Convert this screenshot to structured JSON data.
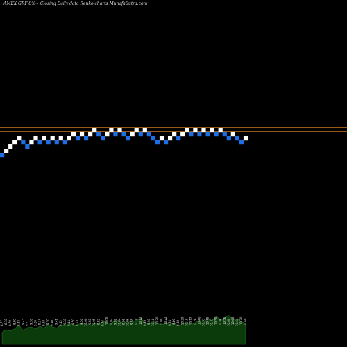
{
  "header": {
    "title": "AMEX  GRF 8%~  Closing Daily data  Renko  charts MunafaSutra.com"
  },
  "colors": {
    "background": "#000000",
    "up_brick": "#ffffff",
    "down_brick": "#1e6ee6",
    "reference_line": "#c8781e",
    "volume_fill": "#0b3a0b",
    "volume_line": "#1f7a1f",
    "label_text": "#e8e8e8"
  },
  "chart_data": {
    "type": "renko",
    "brick_size": 1,
    "reference_lines": [
      16,
      15
    ],
    "bricks": [
      {
        "dir": "down",
        "level": 10
      },
      {
        "dir": "up",
        "level": 11
      },
      {
        "dir": "up",
        "level": 12
      },
      {
        "dir": "up",
        "level": 13
      },
      {
        "dir": "up",
        "level": 14
      },
      {
        "dir": "down",
        "level": 13
      },
      {
        "dir": "down",
        "level": 12
      },
      {
        "dir": "up",
        "level": 13
      },
      {
        "dir": "up",
        "level": 14
      },
      {
        "dir": "down",
        "level": 13
      },
      {
        "dir": "up",
        "level": 14
      },
      {
        "dir": "down",
        "level": 13
      },
      {
        "dir": "up",
        "level": 14
      },
      {
        "dir": "down",
        "level": 13
      },
      {
        "dir": "up",
        "level": 14
      },
      {
        "dir": "down",
        "level": 13
      },
      {
        "dir": "up",
        "level": 14
      },
      {
        "dir": "up",
        "level": 15
      },
      {
        "dir": "down",
        "level": 14
      },
      {
        "dir": "up",
        "level": 15
      },
      {
        "dir": "down",
        "level": 14
      },
      {
        "dir": "up",
        "level": 15
      },
      {
        "dir": "up",
        "level": 16
      },
      {
        "dir": "down",
        "level": 15
      },
      {
        "dir": "down",
        "level": 14
      },
      {
        "dir": "up",
        "level": 15
      },
      {
        "dir": "up",
        "level": 16
      },
      {
        "dir": "down",
        "level": 15
      },
      {
        "dir": "up",
        "level": 16
      },
      {
        "dir": "down",
        "level": 15
      },
      {
        "dir": "down",
        "level": 14
      },
      {
        "dir": "up",
        "level": 15
      },
      {
        "dir": "up",
        "level": 16
      },
      {
        "dir": "down",
        "level": 15
      },
      {
        "dir": "up",
        "level": 16
      },
      {
        "dir": "down",
        "level": 15
      },
      {
        "dir": "down",
        "level": 14
      },
      {
        "dir": "down",
        "level": 13
      },
      {
        "dir": "up",
        "level": 14
      },
      {
        "dir": "down",
        "level": 13
      },
      {
        "dir": "up",
        "level": 14
      },
      {
        "dir": "up",
        "level": 15
      },
      {
        "dir": "down",
        "level": 14
      },
      {
        "dir": "up",
        "level": 15
      },
      {
        "dir": "up",
        "level": 16
      },
      {
        "dir": "down",
        "level": 15
      },
      {
        "dir": "up",
        "level": 16
      },
      {
        "dir": "down",
        "level": 15
      },
      {
        "dir": "up",
        "level": 16
      },
      {
        "dir": "down",
        "level": 15
      },
      {
        "dir": "up",
        "level": 16
      },
      {
        "dir": "down",
        "level": 15
      },
      {
        "dir": "up",
        "level": 16
      },
      {
        "dir": "down",
        "level": 15
      },
      {
        "dir": "down",
        "level": 14
      },
      {
        "dir": "up",
        "level": 15
      },
      {
        "dir": "down",
        "level": 14
      },
      {
        "dir": "down",
        "level": 13
      },
      {
        "dir": "up",
        "level": 14
      }
    ],
    "price_labels": [
      "8.77",
      "8.78",
      "8.79",
      "8.80",
      "8.82",
      "9.23",
      "9.21",
      "9.18",
      "9.20",
      "9.34",
      "9.28",
      "9.30",
      "9.40",
      "9.41",
      "9.42",
      "9.38",
      "9.44",
      "9.50",
      "9.53",
      "9.56",
      "10.00",
      "9.98",
      "10.05",
      "9.92",
      "9.94",
      "10.00",
      "10.02",
      "9.90",
      "10.04",
      "9.96",
      "10.06",
      "9.98",
      "10.10",
      "10.12",
      "9.95",
      "9.98",
      "10.18",
      "10.20",
      "10.09",
      "10.22",
      "9.84",
      "9.86",
      "9.88",
      "10.20",
      "10.18",
      "10.12",
      "10.28",
      "10.40",
      "10.33",
      "10.45",
      "10.47",
      "10.50",
      "10.58",
      "10.56",
      "10.60",
      "10.66",
      "10.64",
      "10.70",
      "10.69"
    ],
    "volume": [
      0.35,
      0.42,
      0.38,
      0.45,
      0.55,
      0.4,
      0.48,
      0.5,
      0.44,
      0.52,
      0.46,
      0.58,
      0.5,
      0.47,
      0.55,
      0.53,
      0.6,
      0.52,
      0.56,
      0.62,
      0.58,
      0.54,
      0.6,
      0.57,
      0.66,
      0.63,
      0.59,
      0.72,
      0.65,
      0.61,
      0.68,
      0.64,
      0.7,
      0.75,
      0.62,
      0.58,
      0.66,
      0.6,
      0.55,
      0.63,
      0.57,
      0.61,
      0.52,
      0.59,
      0.64,
      0.56,
      0.62,
      0.69,
      0.66,
      0.73,
      0.68,
      0.8,
      0.71,
      0.76,
      0.83,
      0.7,
      0.74,
      0.65,
      0.6
    ]
  }
}
